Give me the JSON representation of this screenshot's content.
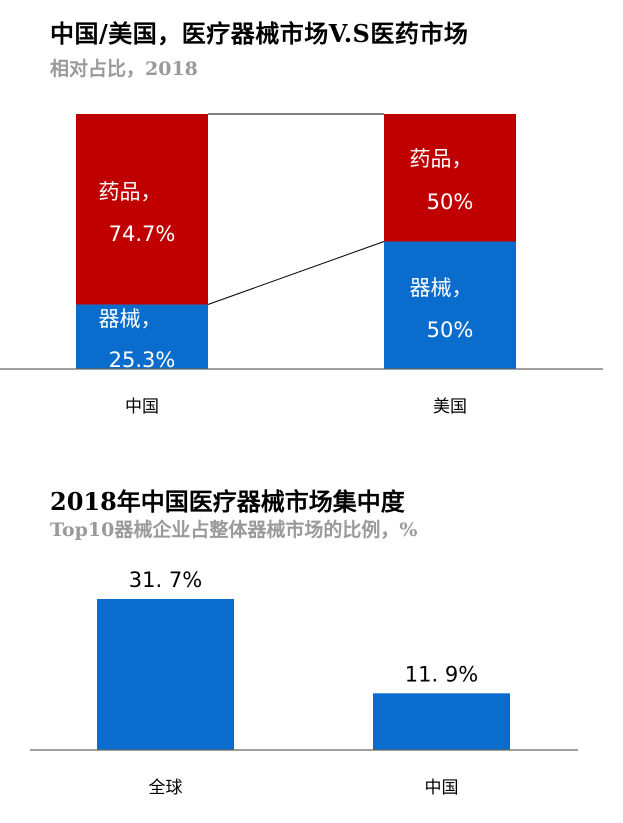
{
  "chart_data": [
    {
      "type": "bar",
      "stacked": true,
      "normalized": true,
      "title": "中国/美国，医疗器械市场V.S医药市场",
      "subtitle": "相对占比，2018",
      "categories": [
        "中国",
        "美国"
      ],
      "series": [
        {
          "name": "器械",
          "values": [
            25.3,
            50
          ],
          "labels": [
            "器械，",
            "器械，"
          ],
          "value_labels": [
            "25.3%",
            "50%"
          ],
          "color": "#0a6ccc"
        },
        {
          "name": "药品",
          "values": [
            74.7,
            50
          ],
          "labels": [
            "药品，",
            "药品，"
          ],
          "value_labels": [
            "74.7%",
            "50%"
          ],
          "color": "#c00000"
        }
      ],
      "ylim": [
        0,
        100
      ],
      "connector_lines": true,
      "grid": false
    },
    {
      "type": "bar",
      "title": "2018年中国医疗器械市场集中度",
      "subtitle": "Top10器械企业占整体器械市场的比例，%",
      "categories": [
        "全球",
        "中国"
      ],
      "values": [
        31.7,
        11.9
      ],
      "value_labels": [
        "31. 7%",
        "11. 9%"
      ],
      "color": "#0a6ccc",
      "ylim": [
        0,
        40
      ],
      "grid": false
    }
  ]
}
